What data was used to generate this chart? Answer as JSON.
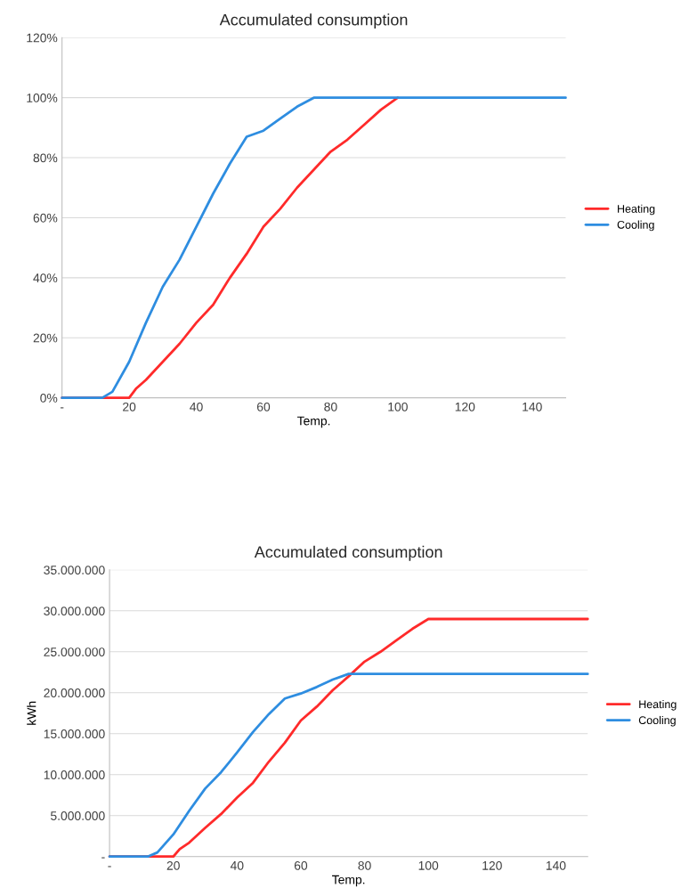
{
  "chart_data": [
    {
      "type": "line",
      "title": "Accumulated consumption",
      "xlabel": "Temp.",
      "xlim": [
        0,
        150
      ],
      "xticks": [
        {
          "value": 0,
          "label": "-"
        },
        20,
        40,
        60,
        80,
        100,
        120,
        140
      ],
      "ylim": [
        0,
        1.2
      ],
      "yticks": [
        {
          "value": 0,
          "label": "0%"
        },
        {
          "value": 0.2,
          "label": "20%"
        },
        {
          "value": 0.4,
          "label": "40%"
        },
        {
          "value": 0.6,
          "label": "60%"
        },
        {
          "value": 0.8,
          "label": "80%"
        },
        {
          "value": 1.0,
          "label": "100%"
        },
        {
          "value": 1.2,
          "label": "120%"
        }
      ],
      "grid": "y",
      "legend": "right",
      "marker": "none",
      "line_style": "solid",
      "series": [
        {
          "name": "Heating",
          "color": "#ff2a2a",
          "x": [
            0,
            20,
            22,
            25,
            30,
            35,
            40,
            45,
            50,
            55,
            60,
            65,
            70,
            75,
            80,
            85,
            90,
            95,
            100
          ],
          "values": [
            0,
            0,
            0.03,
            0.06,
            0.12,
            0.18,
            0.25,
            0.31,
            0.4,
            0.48,
            0.57,
            0.63,
            0.7,
            0.76,
            0.82,
            0.86,
            0.91,
            0.96,
            1.0
          ]
        },
        {
          "name": "Cooling",
          "color": "#2e8de0",
          "x": [
            0,
            12,
            15,
            20,
            25,
            30,
            35,
            40,
            45,
            50,
            55,
            60,
            65,
            70,
            75,
            150
          ],
          "values": [
            0,
            0,
            0.02,
            0.12,
            0.25,
            0.37,
            0.46,
            0.57,
            0.68,
            0.78,
            0.87,
            0.89,
            0.93,
            0.97,
            1.0,
            1.0
          ]
        }
      ]
    },
    {
      "type": "line",
      "title": "Accumulated consumption",
      "xlabel": "Temp.",
      "ylabel": "kWh",
      "xlim": [
        0,
        150
      ],
      "xticks": [
        {
          "value": 0,
          "label": "-"
        },
        20,
        40,
        60,
        80,
        100,
        120,
        140
      ],
      "ylim": [
        0,
        35000000
      ],
      "yticks": [
        {
          "value": 0,
          "label": "-"
        },
        {
          "value": 5000000,
          "label": "5.000.000"
        },
        {
          "value": 10000000,
          "label": "10.000.000"
        },
        {
          "value": 15000000,
          "label": "15.000.000"
        },
        {
          "value": 20000000,
          "label": "20.000.000"
        },
        {
          "value": 25000000,
          "label": "25.000.000"
        },
        {
          "value": 30000000,
          "label": "30.000.000"
        },
        {
          "value": 35000000,
          "label": "35.000.000"
        }
      ],
      "grid": "y",
      "legend": "right",
      "marker": "none",
      "line_style": "solid",
      "series": [
        {
          "name": "Heating",
          "color": "#ff2a2a",
          "x": [
            0,
            20,
            22,
            25,
            30,
            35,
            40,
            45,
            50,
            55,
            60,
            65,
            70,
            75,
            80,
            85,
            90,
            95,
            100,
            150
          ],
          "values": [
            0,
            0,
            900000,
            1700000,
            3500000,
            5200000,
            7200000,
            9000000,
            11600000,
            13900000,
            16600000,
            18300000,
            20300000,
            22000000,
            23800000,
            25000000,
            26400000,
            27800000,
            29000000,
            29000000
          ]
        },
        {
          "name": "Cooling",
          "color": "#2e8de0",
          "x": [
            0,
            12,
            15,
            20,
            25,
            30,
            35,
            40,
            45,
            50,
            55,
            60,
            65,
            70,
            75,
            150
          ],
          "values": [
            0,
            0,
            500000,
            2700000,
            5600000,
            8300000,
            10300000,
            12700000,
            15200000,
            17400000,
            19300000,
            19900000,
            20700000,
            21600000,
            22300000,
            22300000
          ]
        }
      ]
    }
  ]
}
